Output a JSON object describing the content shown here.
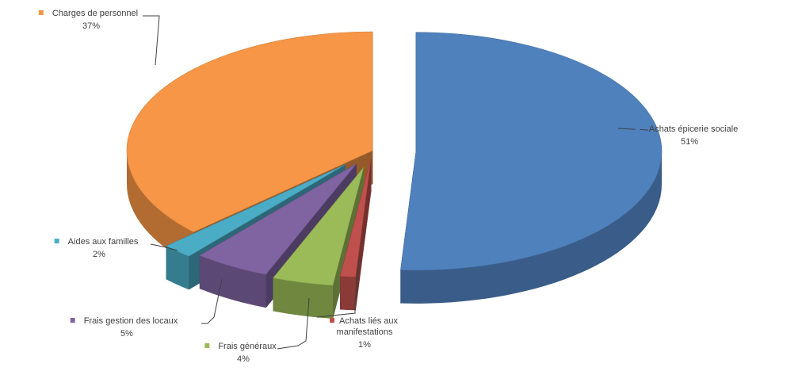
{
  "chart_data": {
    "type": "pie",
    "style": "3d-exploded",
    "categories": [
      "Achats épicerie sociale",
      "Achats liés aux manifestations",
      "Frais généraux",
      "Frais gestion des locaux",
      "Aides aux familles",
      "Charges de personnel"
    ],
    "values": [
      51,
      1,
      4,
      5,
      2,
      37
    ],
    "percent_labels": [
      "51%",
      "1%",
      "4%",
      "5%",
      "2%",
      "37%"
    ],
    "colors": [
      "#4f81bd",
      "#c0504d",
      "#9bbb59",
      "#8064a2",
      "#4bacc6",
      "#f79646"
    ],
    "legend": "none"
  }
}
